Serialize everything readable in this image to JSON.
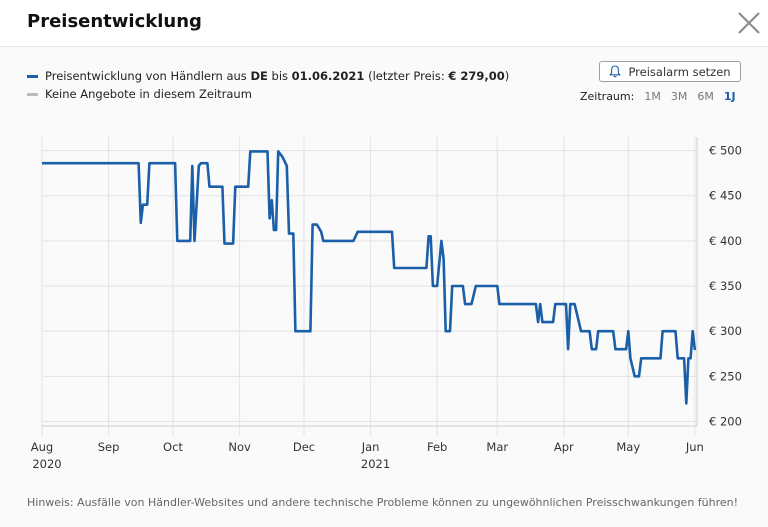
{
  "dialog": {
    "title": "Preisentwicklung",
    "close_icon": "close-icon"
  },
  "legend": {
    "primary": {
      "prefix": "Preisentwicklung von Händlern aus ",
      "country": "DE",
      "mid": " bis ",
      "date": "01.06.2021",
      "open": " (letzter Preis: ",
      "price": "€ 279,00",
      "close": ")",
      "color": "#1a5fa8"
    },
    "secondary": {
      "label": "Keine Angebote in diesem Zeitraum",
      "color": "#bbbbbb"
    }
  },
  "alarm": {
    "label": "Preisalarm setzen",
    "icon": "bell-icon"
  },
  "range": {
    "label": "Zeitraum:",
    "options": [
      "1M",
      "3M",
      "6M",
      "1J"
    ],
    "active": "1J"
  },
  "footer": {
    "note": "Hinweis: Ausfälle von Händler-Websites und andere technische Probleme können zu ungewöhnlichen Preisschwankungen führen!"
  },
  "chart_data": {
    "type": "line",
    "x_unit": "days since 2020-08-01",
    "y_unit": "EUR",
    "ylim": [
      195,
      515
    ],
    "xlim": [
      0,
      305
    ],
    "grid": true,
    "yticks": [
      {
        "value": 200,
        "label": "€ 200"
      },
      {
        "value": 250,
        "label": "€ 250"
      },
      {
        "value": 300,
        "label": "€ 300"
      },
      {
        "value": 350,
        "label": "€ 350"
      },
      {
        "value": 400,
        "label": "€ 400"
      },
      {
        "value": 450,
        "label": "€ 450"
      },
      {
        "value": 500,
        "label": "€ 500"
      }
    ],
    "xticks": [
      {
        "value": 0,
        "label": "Aug",
        "sub": "2020"
      },
      {
        "value": 31,
        "label": "Sep",
        "sub": ""
      },
      {
        "value": 61,
        "label": "Oct",
        "sub": ""
      },
      {
        "value": 92,
        "label": "Nov",
        "sub": ""
      },
      {
        "value": 122,
        "label": "Dec",
        "sub": ""
      },
      {
        "value": 153,
        "label": "Jan",
        "sub": "2021"
      },
      {
        "value": 184,
        "label": "Feb",
        "sub": ""
      },
      {
        "value": 212,
        "label": "Mar",
        "sub": ""
      },
      {
        "value": 243,
        "label": "Apr",
        "sub": ""
      },
      {
        "value": 273,
        "label": "May",
        "sub": ""
      },
      {
        "value": 304,
        "label": "Jun",
        "sub": ""
      }
    ],
    "series": [
      {
        "name": "Preisentwicklung von Händlern aus DE",
        "color": "#1a5fa8",
        "points": [
          [
            0,
            486
          ],
          [
            45,
            486
          ],
          [
            46,
            420
          ],
          [
            47,
            440
          ],
          [
            49,
            440
          ],
          [
            50,
            486
          ],
          [
            62,
            486
          ],
          [
            63,
            400
          ],
          [
            69,
            400
          ],
          [
            70,
            483
          ],
          [
            71,
            400
          ],
          [
            73,
            483
          ],
          [
            74,
            486
          ],
          [
            77,
            486
          ],
          [
            78,
            460
          ],
          [
            84,
            460
          ],
          [
            85,
            397
          ],
          [
            89,
            397
          ],
          [
            90,
            460
          ],
          [
            96,
            460
          ],
          [
            97,
            499
          ],
          [
            105,
            499
          ],
          [
            106,
            425
          ],
          [
            107,
            445
          ],
          [
            108,
            412
          ],
          [
            109,
            412
          ],
          [
            110,
            499
          ],
          [
            112,
            493
          ],
          [
            114,
            483
          ],
          [
            115,
            408
          ],
          [
            117,
            408
          ],
          [
            118,
            300
          ],
          [
            125,
            300
          ],
          [
            126,
            418
          ],
          [
            128,
            418
          ],
          [
            130,
            410
          ],
          [
            131,
            400
          ],
          [
            145,
            400
          ],
          [
            147,
            410
          ],
          [
            163,
            410
          ],
          [
            164,
            370
          ],
          [
            179,
            370
          ],
          [
            180,
            405
          ],
          [
            181,
            405
          ],
          [
            182,
            350
          ],
          [
            184,
            350
          ],
          [
            186,
            400
          ],
          [
            187,
            380
          ],
          [
            188,
            300
          ],
          [
            190,
            300
          ],
          [
            191,
            350
          ],
          [
            196,
            350
          ],
          [
            197,
            330
          ],
          [
            200,
            330
          ],
          [
            202,
            350
          ],
          [
            212,
            350
          ],
          [
            213,
            330
          ],
          [
            230,
            330
          ],
          [
            231,
            310
          ],
          [
            232,
            330
          ],
          [
            233,
            310
          ],
          [
            238,
            310
          ],
          [
            239,
            330
          ],
          [
            244,
            330
          ],
          [
            245,
            280
          ],
          [
            246,
            330
          ],
          [
            248,
            330
          ],
          [
            250,
            310
          ],
          [
            251,
            300
          ],
          [
            255,
            300
          ],
          [
            256,
            280
          ],
          [
            258,
            280
          ],
          [
            259,
            300
          ],
          [
            266,
            300
          ],
          [
            267,
            280
          ],
          [
            272,
            280
          ],
          [
            273,
            300
          ],
          [
            274,
            270
          ],
          [
            276,
            250
          ],
          [
            278,
            250
          ],
          [
            279,
            270
          ],
          [
            288,
            270
          ],
          [
            289,
            300
          ],
          [
            295,
            300
          ],
          [
            296,
            270
          ],
          [
            299,
            270
          ],
          [
            300,
            220
          ],
          [
            301,
            270
          ],
          [
            302,
            270
          ],
          [
            303,
            300
          ],
          [
            304,
            279
          ]
        ]
      }
    ]
  }
}
